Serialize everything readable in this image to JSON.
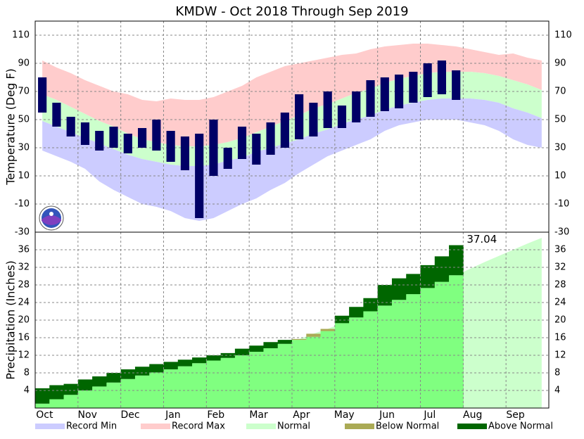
{
  "chart_data": [
    {
      "type": "temperature",
      "title": "KMDW - Oct 2018 Through Sep 2019",
      "ylabel": "Temperature (Deg F)",
      "ylim": [
        -30,
        120
      ],
      "yticks": [
        -30,
        -10,
        10,
        30,
        50,
        70,
        90,
        110
      ],
      "grid": true,
      "series": [
        {
          "name": "Record Min",
          "color": "#ccccff",
          "values": [
            28,
            24,
            20,
            15,
            6,
            0,
            -5,
            -10,
            -12,
            -15,
            -20,
            -22,
            -20,
            -15,
            -10,
            -6,
            0,
            5,
            12,
            18,
            24,
            28,
            32,
            36,
            42,
            46,
            48,
            50,
            50,
            50,
            48,
            46,
            42,
            36,
            32,
            30
          ]
        },
        {
          "name": "Record Max",
          "color": "#ffcccc",
          "values": [
            92,
            87,
            83,
            78,
            74,
            70,
            68,
            64,
            63,
            65,
            64,
            64,
            66,
            70,
            74,
            80,
            84,
            88,
            90,
            92,
            94,
            96,
            97,
            100,
            102,
            103,
            104,
            104,
            103,
            102,
            100,
            98,
            96,
            97,
            94,
            92
          ]
        },
        {
          "name": "Normal",
          "color": "#ccffcc",
          "high": [
            68,
            64,
            59,
            54,
            49,
            45,
            40,
            36,
            34,
            32,
            31,
            31,
            32,
            34,
            37,
            41,
            45,
            49,
            53,
            58,
            61,
            65,
            69,
            72,
            76,
            79,
            81,
            83,
            84,
            84,
            84,
            83,
            81,
            78,
            75,
            71
          ],
          "low": [
            49,
            45,
            41,
            37,
            33,
            29,
            25,
            22,
            20,
            18,
            17,
            17,
            18,
            21,
            23,
            27,
            30,
            33,
            36,
            40,
            43,
            47,
            50,
            53,
            57,
            60,
            62,
            64,
            65,
            65,
            65,
            64,
            62,
            58,
            55,
            51
          ]
        }
      ],
      "observed": {
        "color": "#000066",
        "high": [
          80,
          62,
          52,
          48,
          42,
          45,
          40,
          44,
          50,
          42,
          38,
          40,
          50,
          30,
          45,
          40,
          48,
          55,
          68,
          62,
          70,
          60,
          70,
          78,
          80,
          82,
          84,
          90,
          92,
          85,
          null,
          null,
          null,
          null,
          null,
          null
        ],
        "low": [
          55,
          45,
          38,
          32,
          28,
          30,
          26,
          30,
          28,
          20,
          14,
          -20,
          10,
          15,
          22,
          18,
          25,
          30,
          36,
          38,
          44,
          44,
          48,
          52,
          56,
          58,
          62,
          66,
          68,
          64,
          null,
          null,
          null,
          null,
          null,
          null
        ]
      }
    },
    {
      "type": "precipitation",
      "ylabel": "Precipitation (Inches)",
      "ylim": [
        0,
        40
      ],
      "yticks": [
        4,
        8,
        12,
        16,
        20,
        24,
        28,
        32,
        36
      ],
      "grid": true,
      "categories": [
        "Oct",
        "Nov",
        "Dec",
        "Jan",
        "Feb",
        "Mar",
        "Apr",
        "May",
        "Jun",
        "Jul",
        "Aug",
        "Sep"
      ],
      "normal": {
        "name": "Normal",
        "color": "#80ff80",
        "future_color": "#ccffcc",
        "values": [
          1.0,
          2.0,
          3.0,
          4.0,
          4.9,
          5.8,
          6.6,
          7.4,
          8.1,
          8.8,
          9.5,
          10.2,
          10.8,
          11.4,
          12.0,
          12.8,
          13.6,
          14.6,
          15.7,
          16.9,
          18.0,
          19.3,
          20.6,
          22.0,
          23.3,
          24.6,
          25.9,
          27.3,
          28.7,
          30.2,
          31.7,
          33.2,
          34.6,
          36.0,
          37.4,
          38.7
        ]
      },
      "observed": {
        "values": [
          4.5,
          5.2,
          5.5,
          6.5,
          7.2,
          8.0,
          8.8,
          9.4,
          10.0,
          10.5,
          11.0,
          11.5,
          12.0,
          12.5,
          13.5,
          14.2,
          15.0,
          15.5,
          15.5,
          16.2,
          17.5,
          21.0,
          23.0,
          25.0,
          28.0,
          29.5,
          30.5,
          32.5,
          34.5,
          37.04,
          null,
          null,
          null,
          null,
          null,
          null
        ]
      },
      "below": {
        "name": "Below Normal",
        "color": "#aaaa55"
      },
      "above": {
        "name": "Above Normal",
        "color": "#006600"
      }
    }
  ]
}
